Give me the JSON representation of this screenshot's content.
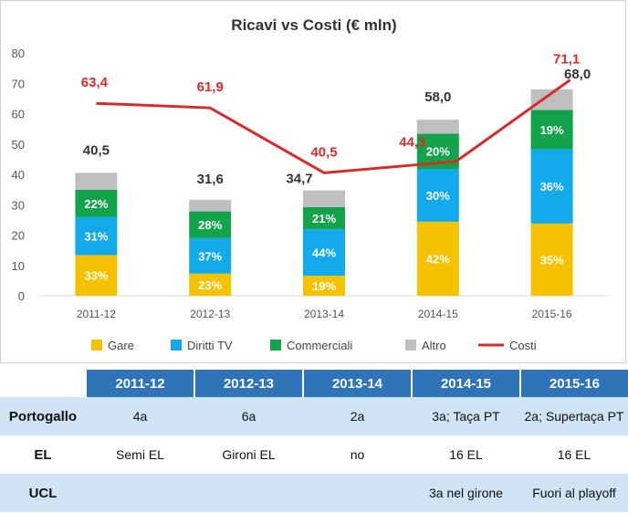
{
  "chart_data": {
    "type": "bar",
    "title": "Ricavi vs Costi (€ mln)",
    "categories": [
      "2011-12",
      "2012-13",
      "2013-14",
      "2014-15",
      "2015-16"
    ],
    "ylim": [
      0,
      80
    ],
    "yticks": [
      0,
      10,
      20,
      30,
      40,
      50,
      60,
      70,
      80
    ],
    "stacked": true,
    "totals": [
      40.5,
      31.6,
      34.7,
      58.0,
      68.0
    ],
    "totals_labels": [
      "40,5",
      "31,6",
      "34,7",
      "58,0",
      "68,0"
    ],
    "series": [
      {
        "name": "Gare",
        "type": "bar",
        "color": "#f5c200",
        "values": [
          13.4,
          7.3,
          6.6,
          24.4,
          23.8
        ],
        "labels": [
          "33%",
          "23%",
          "19%",
          "42%",
          "35%"
        ]
      },
      {
        "name": "Diritti TV",
        "type": "bar",
        "color": "#12aaeb",
        "values": [
          12.6,
          11.7,
          15.3,
          17.4,
          24.5
        ],
        "labels": [
          "31%",
          "37%",
          "44%",
          "30%",
          "36%"
        ]
      },
      {
        "name": "Commerciali",
        "type": "bar",
        "color": "#12a34b",
        "values": [
          8.9,
          8.8,
          7.3,
          11.6,
          12.9
        ],
        "labels": [
          "22%",
          "28%",
          "21%",
          "20%",
          "19%"
        ]
      },
      {
        "name": "Altro",
        "type": "bar",
        "color": "#bfbfbf",
        "values": [
          5.6,
          3.8,
          5.5,
          4.6,
          6.8
        ],
        "labels": [
          "",
          "",
          "",
          "",
          ""
        ]
      },
      {
        "name": "Costi",
        "type": "line",
        "color": "#d92b2b",
        "values": [
          63.4,
          61.9,
          40.5,
          44.3,
          71.1
        ],
        "labels": [
          "63,4",
          "61,9",
          "40,5",
          "44,3",
          "71,1"
        ]
      }
    ],
    "legend_position": "bottom",
    "grid": false
  },
  "table": {
    "headers": [
      "2011-12",
      "2012-13",
      "2013-14",
      "2014-15",
      "2015-16"
    ],
    "rows": [
      {
        "label": "Portogallo",
        "cells": [
          "4a",
          "6a",
          "2a",
          "3a; Taça PT",
          "2a; Supertaça PT"
        ]
      },
      {
        "label": "EL",
        "cells": [
          "Semi EL",
          "Gironi EL",
          "no",
          "16 EL",
          "16 EL"
        ]
      },
      {
        "label": "UCL",
        "cells": [
          "",
          "",
          "",
          "3a nel girone",
          "Fuori al playoff"
        ]
      }
    ]
  }
}
